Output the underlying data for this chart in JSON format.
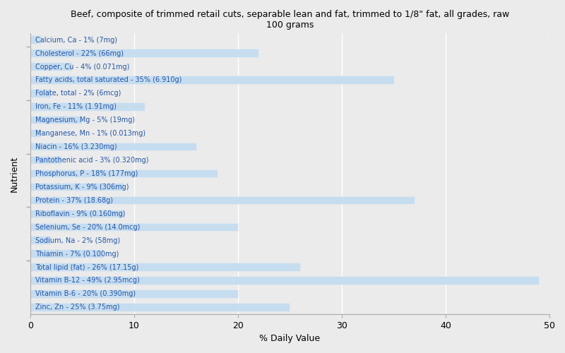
{
  "title": "Beef, composite of trimmed retail cuts, separable lean and fat, trimmed to 1/8\" fat, all grades, raw\n100 grams",
  "xlabel": "% Daily Value",
  "ylabel": "Nutrient",
  "background_color": "#ebebeb",
  "bar_color": "#c6ddf0",
  "bar_edge_color": "#c6ddf0",
  "xlim": [
    0,
    50
  ],
  "xticks": [
    0,
    10,
    20,
    30,
    40,
    50
  ],
  "nutrients": [
    "Calcium, Ca - 1% (7mg)",
    "Cholesterol - 22% (66mg)",
    "Copper, Cu - 4% (0.071mg)",
    "Fatty acids, total saturated - 35% (6.910g)",
    "Folate, total - 2% (6mcg)",
    "Iron, Fe - 11% (1.91mg)",
    "Magnesium, Mg - 5% (19mg)",
    "Manganese, Mn - 1% (0.013mg)",
    "Niacin - 16% (3.230mg)",
    "Pantothenic acid - 3% (0.320mg)",
    "Phosphorus, P - 18% (177mg)",
    "Potassium, K - 9% (306mg)",
    "Protein - 37% (18.68g)",
    "Riboflavin - 9% (0.160mg)",
    "Selenium, Se - 20% (14.0mcg)",
    "Sodium, Na - 2% (58mg)",
    "Thiamin - 7% (0.100mg)",
    "Total lipid (fat) - 26% (17.15g)",
    "Vitamin B-12 - 49% (2.95mcg)",
    "Vitamin B-6 - 20% (0.390mg)",
    "Zinc, Zn - 25% (3.75mg)"
  ],
  "values": [
    1,
    22,
    4,
    35,
    2,
    11,
    5,
    1,
    16,
    3,
    18,
    9,
    37,
    9,
    20,
    2,
    7,
    26,
    49,
    20,
    25
  ],
  "label_color": "#2255aa",
  "label_fontsize": 7,
  "title_fontsize": 9,
  "axis_label_fontsize": 9,
  "bar_height": 0.55,
  "ytick_positions": [
    3.5,
    7.5,
    11.5,
    15.5,
    19.5
  ],
  "grid_color": "#ffffff",
  "spine_color": "#aaaaaa"
}
